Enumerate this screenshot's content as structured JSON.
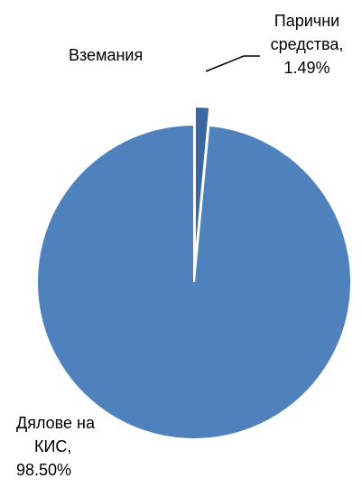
{
  "chart_data": {
    "type": "pie",
    "slices": [
      {
        "category": "Парични средства",
        "value": 1.49,
        "display": "1.49%",
        "color": "#3A67A0"
      },
      {
        "category": "Вземания",
        "value": 0.01,
        "display": "",
        "color": "#2F5D95"
      },
      {
        "category": "Дялове на КИС",
        "value": 98.5,
        "display": "98.50%",
        "color": "#4F81BD"
      }
    ],
    "labels": {
      "cash_line1": "Парични",
      "cash_line2": "средства,",
      "cash_value": "1.49%",
      "receivables": "Вземания",
      "shares_line1": "Дялове на",
      "shares_line2": "КИС,",
      "shares_value": "98.50%"
    },
    "slice_border_color": "#ffffff",
    "leader_line_color": "#000000"
  }
}
